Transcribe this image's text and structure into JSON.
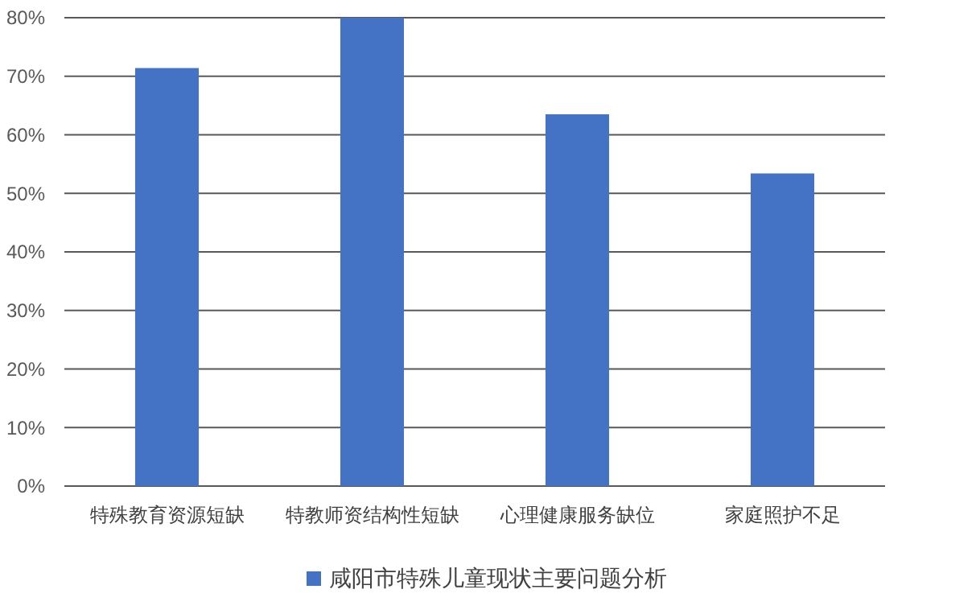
{
  "chart_data": {
    "type": "bar",
    "categories": [
      "特殊教育资源短缺",
      "特教师资结构性短缺",
      "心理健康服务缺位",
      "家庭照护不足"
    ],
    "series": [
      {
        "name": "咸阳市特殊儿童现状主要问题分析",
        "color": "#4472c4",
        "values": [
          71.4,
          80,
          63.5,
          53.4
        ]
      }
    ],
    "ylim": [
      0,
      80
    ],
    "yticks": [
      {
        "value": 0,
        "label": "0%"
      },
      {
        "value": 10,
        "label": "10%"
      },
      {
        "value": 20,
        "label": "20%"
      },
      {
        "value": 30,
        "label": "30%"
      },
      {
        "value": 40,
        "label": "40%"
      },
      {
        "value": 50,
        "label": "50%"
      },
      {
        "value": 60,
        "label": "60%"
      },
      {
        "value": 70,
        "label": "70%"
      },
      {
        "value": 80,
        "label": "80%"
      }
    ],
    "grid": "y",
    "legend": "bottom"
  }
}
